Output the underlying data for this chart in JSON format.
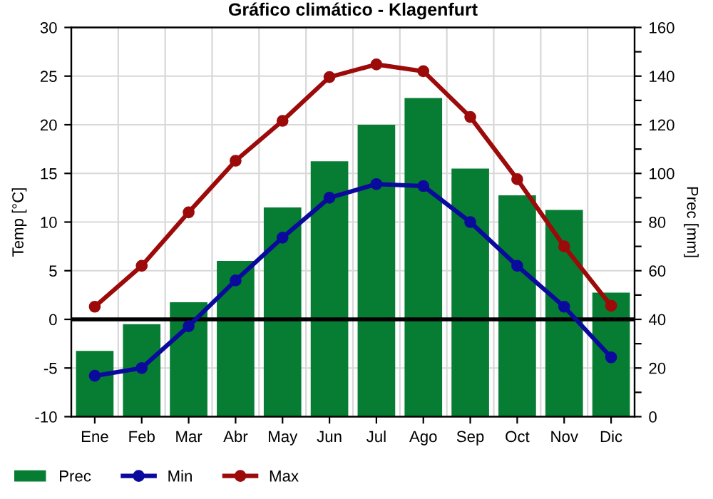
{
  "chart_data": {
    "type": "bar",
    "title": "Gráfico climático - Klagenfurt",
    "ylabel": "Temp [°C]",
    "y2label": "Prec [mm]",
    "categories": [
      "Ene",
      "Feb",
      "Mar",
      "Abr",
      "May",
      "Jun",
      "Jul",
      "Ago",
      "Sep",
      "Oct",
      "Nov",
      "Dic"
    ],
    "series": [
      {
        "name": "Prec",
        "axis": "y2",
        "color": "#067d32",
        "values": [
          27,
          38,
          47,
          64,
          86,
          105,
          120,
          131,
          102,
          91,
          85,
          51
        ]
      },
      {
        "name": "Min",
        "type": "line",
        "color": "#0a0a9c",
        "marker": "circle",
        "values": [
          -5.8,
          -5.0,
          -0.7,
          4.0,
          8.4,
          12.5,
          13.9,
          13.7,
          10.0,
          5.5,
          1.3,
          -3.9
        ]
      },
      {
        "name": "Max",
        "type": "line",
        "color": "#9c0a0a",
        "marker": "circle",
        "values": [
          1.3,
          5.5,
          11.0,
          16.3,
          20.4,
          24.9,
          26.2,
          25.5,
          20.8,
          14.4,
          7.5,
          1.4
        ]
      }
    ],
    "ylim": [
      -10,
      30
    ],
    "yticks": [
      -10,
      -5,
      0,
      5,
      10,
      15,
      20,
      25,
      30
    ],
    "y2lim": [
      0,
      160
    ],
    "y2ticks": [
      0,
      {
        "value": 10,
        "label": null
      },
      20,
      {
        "value": 30,
        "label": null
      },
      40,
      {
        "value": 50,
        "label": null
      },
      60,
      {
        "value": 70,
        "label": null
      },
      80,
      {
        "value": 90,
        "label": null
      },
      100,
      {
        "value": 110,
        "label": null
      },
      120,
      {
        "value": 130,
        "label": null
      },
      140,
      {
        "value": 150,
        "label": null
      },
      160
    ],
    "ref_lines": [
      {
        "axis": "y",
        "value": 0,
        "color": "#000000"
      }
    ],
    "grid": true,
    "legend": "bottom"
  }
}
